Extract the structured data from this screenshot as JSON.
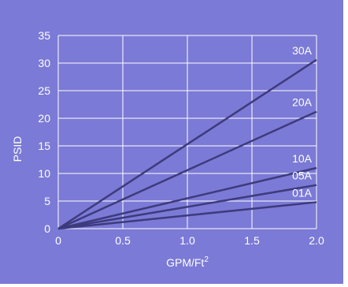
{
  "chart_data": {
    "type": "line",
    "title": "",
    "xlabel": "GPM/Ft",
    "xlabel_superscript": "2",
    "ylabel": "PSID",
    "xlim": [
      0,
      2.0
    ],
    "ylim": [
      0,
      35
    ],
    "x_ticks": [
      "0",
      "0.5",
      "1.0",
      "1.5",
      "2.0"
    ],
    "x_tick_values": [
      0,
      0.5,
      1.0,
      1.5,
      2.0
    ],
    "y_ticks": [
      "0",
      "5",
      "10",
      "15",
      "20",
      "25",
      "30",
      "35"
    ],
    "y_tick_values": [
      0,
      5,
      10,
      15,
      20,
      25,
      30,
      35
    ],
    "grid": true,
    "series": [
      {
        "name": "30A",
        "x": [
          0,
          2.0
        ],
        "y": [
          0,
          30.6
        ]
      },
      {
        "name": "20A",
        "x": [
          0,
          2.0
        ],
        "y": [
          0,
          21.2
        ]
      },
      {
        "name": "10A",
        "x": [
          0,
          2.0
        ],
        "y": [
          0,
          11.0
        ]
      },
      {
        "name": "05A",
        "x": [
          0,
          2.0
        ],
        "y": [
          0,
          7.9
        ]
      },
      {
        "name": "01A",
        "x": [
          0,
          2.0
        ],
        "y": [
          0,
          4.8
        ]
      }
    ],
    "colors": {
      "background": "#7b7ad6",
      "grid": "#ffffff",
      "line": "#3d3b7c",
      "text": "#ffffff"
    }
  }
}
